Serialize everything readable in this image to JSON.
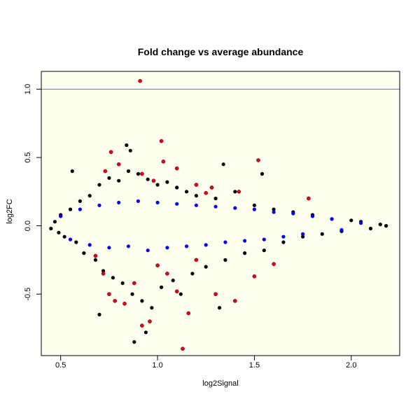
{
  "chart_data": {
    "type": "scatter",
    "title": "Fold change vs average abundance",
    "xlabel": "log2Signal",
    "ylabel": "log2FC",
    "xlim": [
      0.4,
      2.25
    ],
    "ylim": [
      -0.95,
      1.13
    ],
    "x_ticks": [
      0.5,
      1.0,
      1.5,
      2.0
    ],
    "x_tick_labels": [
      "0.5",
      "1.0",
      "1.5",
      "2.0"
    ],
    "y_ticks": [
      -0.5,
      0.0,
      0.5,
      1.0
    ],
    "y_tick_labels": [
      "-0.5",
      "0.0",
      "0.5",
      "1.0"
    ],
    "grid": false,
    "legend": "none",
    "reference_line": {
      "y": 1.0,
      "color": "#6666ff"
    },
    "colors": {
      "background": "#fffff0",
      "all": "#000000",
      "highlight": "#0000ff",
      "significant": "#dd0022"
    },
    "series": [
      {
        "role": "all",
        "color": "#000000",
        "points": [
          [
            0.45,
            -0.02
          ],
          [
            0.47,
            0.03
          ],
          [
            0.49,
            -0.05
          ],
          [
            0.5,
            0.08
          ],
          [
            0.52,
            -0.08
          ],
          [
            0.55,
            0.12
          ],
          [
            0.58,
            -0.12
          ],
          [
            0.6,
            0.18
          ],
          [
            0.62,
            -0.2
          ],
          [
            0.65,
            0.22
          ],
          [
            0.68,
            -0.25
          ],
          [
            0.7,
            0.3
          ],
          [
            0.72,
            -0.33
          ],
          [
            0.75,
            0.35
          ],
          [
            0.77,
            -0.38
          ],
          [
            0.8,
            0.33
          ],
          [
            0.82,
            -0.42
          ],
          [
            0.85,
            0.4
          ],
          [
            0.87,
            -0.5
          ],
          [
            0.9,
            0.38
          ],
          [
            0.92,
            -0.55
          ],
          [
            0.95,
            0.34
          ],
          [
            0.97,
            -0.6
          ],
          [
            1.0,
            0.3
          ],
          [
            1.02,
            -0.45
          ],
          [
            1.05,
            0.32
          ],
          [
            1.08,
            -0.4
          ],
          [
            1.1,
            0.28
          ],
          [
            1.12,
            -0.5
          ],
          [
            1.15,
            0.25
          ],
          [
            1.18,
            -0.35
          ],
          [
            1.2,
            0.22
          ],
          [
            1.25,
            -0.3
          ],
          [
            1.3,
            0.2
          ],
          [
            1.35,
            -0.25
          ],
          [
            1.4,
            0.25
          ],
          [
            1.45,
            -0.2
          ],
          [
            1.5,
            0.15
          ],
          [
            1.55,
            -0.18
          ],
          [
            1.6,
            0.12
          ],
          [
            1.65,
            -0.12
          ],
          [
            1.7,
            0.1
          ],
          [
            1.75,
            -0.08
          ],
          [
            1.8,
            0.08
          ],
          [
            1.85,
            -0.06
          ],
          [
            1.9,
            0.05
          ],
          [
            1.95,
            -0.04
          ],
          [
            2.0,
            0.04
          ],
          [
            2.05,
            0.03
          ],
          [
            2.1,
            -0.02
          ],
          [
            2.15,
            0.01
          ],
          [
            2.18,
            0.0
          ],
          [
            0.56,
            0.4
          ],
          [
            0.84,
            0.59
          ],
          [
            0.86,
            0.55
          ],
          [
            0.88,
            -0.85
          ],
          [
            0.94,
            -0.78
          ],
          [
            1.34,
            0.45
          ],
          [
            1.54,
            0.38
          ],
          [
            1.32,
            -0.6
          ],
          [
            0.7,
            -0.65
          ]
        ]
      },
      {
        "role": "highlight",
        "color": "#0000ff",
        "points": [
          [
            0.5,
            0.07
          ],
          [
            0.55,
            -0.1
          ],
          [
            0.6,
            0.12
          ],
          [
            0.65,
            -0.14
          ],
          [
            0.7,
            0.15
          ],
          [
            0.75,
            -0.16
          ],
          [
            0.8,
            0.17
          ],
          [
            0.85,
            -0.15
          ],
          [
            0.9,
            0.18
          ],
          [
            0.95,
            -0.18
          ],
          [
            1.0,
            0.17
          ],
          [
            1.05,
            -0.16
          ],
          [
            1.1,
            0.16
          ],
          [
            1.15,
            -0.15
          ],
          [
            1.2,
            0.15
          ],
          [
            1.25,
            -0.14
          ],
          [
            1.3,
            0.14
          ],
          [
            1.35,
            -0.12
          ],
          [
            1.4,
            0.13
          ],
          [
            1.45,
            -0.11
          ],
          [
            1.5,
            0.12
          ],
          [
            1.55,
            -0.1
          ],
          [
            1.6,
            0.1
          ],
          [
            1.65,
            -0.08
          ],
          [
            1.7,
            0.09
          ],
          [
            1.75,
            -0.06
          ],
          [
            1.8,
            0.07
          ],
          [
            1.9,
            0.05
          ],
          [
            1.95,
            -0.03
          ],
          [
            2.05,
            0.02
          ]
        ]
      },
      {
        "role": "significant",
        "color": "#dd0022",
        "points": [
          [
            0.91,
            1.06
          ],
          [
            1.02,
            0.62
          ],
          [
            1.52,
            0.48
          ],
          [
            0.76,
            0.54
          ],
          [
            0.73,
            0.4
          ],
          [
            0.8,
            0.45
          ],
          [
            0.92,
            0.38
          ],
          [
            0.98,
            0.33
          ],
          [
            1.03,
            0.47
          ],
          [
            1.1,
            0.42
          ],
          [
            1.2,
            0.3
          ],
          [
            1.25,
            0.24
          ],
          [
            1.28,
            0.28
          ],
          [
            1.42,
            0.25
          ],
          [
            1.78,
            0.2
          ],
          [
            0.68,
            -0.22
          ],
          [
            0.72,
            -0.35
          ],
          [
            0.75,
            -0.5
          ],
          [
            0.78,
            -0.55
          ],
          [
            0.83,
            -0.57
          ],
          [
            0.88,
            -0.42
          ],
          [
            0.92,
            -0.73
          ],
          [
            0.96,
            -0.7
          ],
          [
            1.05,
            -0.35
          ],
          [
            1.1,
            -0.48
          ],
          [
            1.13,
            -0.9
          ],
          [
            1.16,
            -0.64
          ],
          [
            1.3,
            -0.5
          ],
          [
            1.4,
            -0.55
          ],
          [
            1.5,
            -0.37
          ],
          [
            1.6,
            -0.28
          ],
          [
            1.0,
            -0.29
          ],
          [
            1.2,
            -0.25
          ]
        ]
      }
    ]
  }
}
